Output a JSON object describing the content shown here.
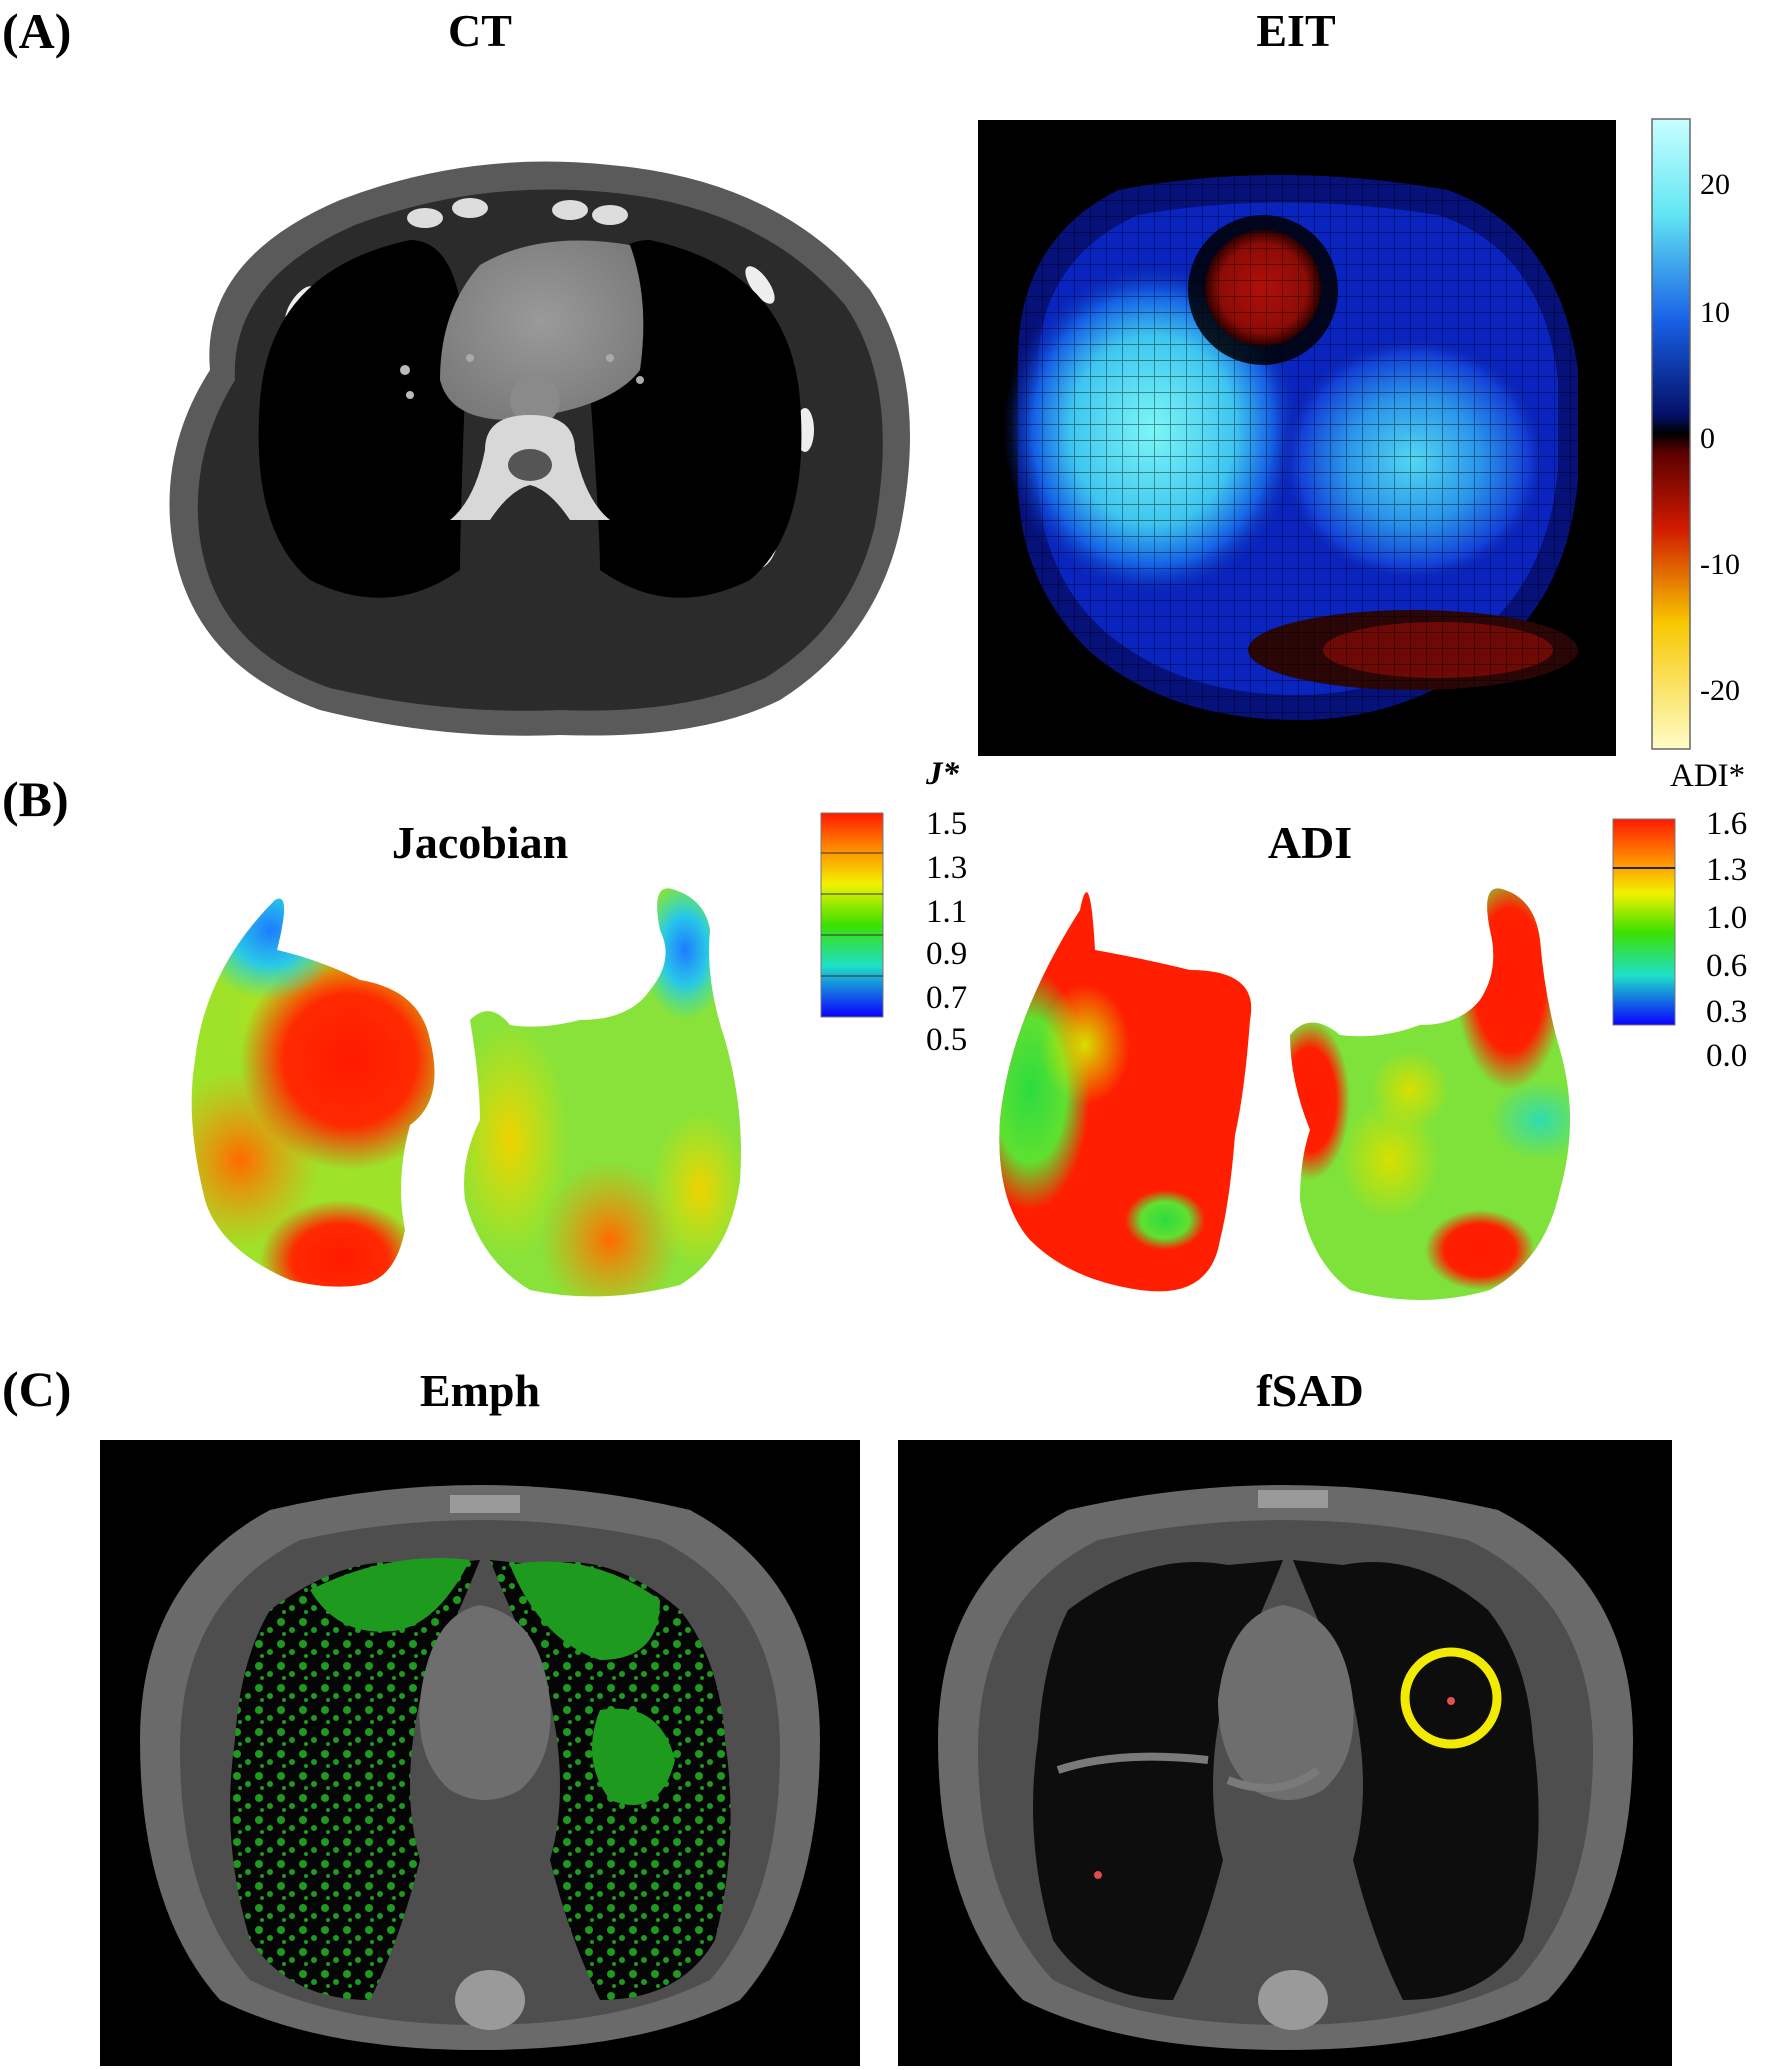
{
  "panels": {
    "A": {
      "label": "(A)",
      "left_title": "CT",
      "right_title": "EIT",
      "colorbar": {
        "ticks": [
          "20",
          "10",
          "0",
          "-10",
          "-20"
        ],
        "range": [
          -25,
          25
        ]
      }
    },
    "B": {
      "label": "(B)",
      "left_title": "Jacobian",
      "right_title": "ADI",
      "jacobian_colorbar": {
        "unit": "J*",
        "ticks": [
          "1.5",
          "1.3",
          "1.1",
          "0.9",
          "0.7",
          "0.5"
        ]
      },
      "adi_colorbar": {
        "unit": "ADI*",
        "ticks": [
          "1.6",
          "1.3",
          "1.0",
          "0.6",
          "0.3",
          "0.0"
        ]
      }
    },
    "C": {
      "label": "(C)",
      "left_title": "Emph",
      "right_title": "fSAD"
    }
  },
  "colors": {
    "eit_positive": "#6ff5f5",
    "eit_negative": "#b01008",
    "emphysema_overlay": "#1e9a1e",
    "fsad_marker": "#f2ea00"
  }
}
